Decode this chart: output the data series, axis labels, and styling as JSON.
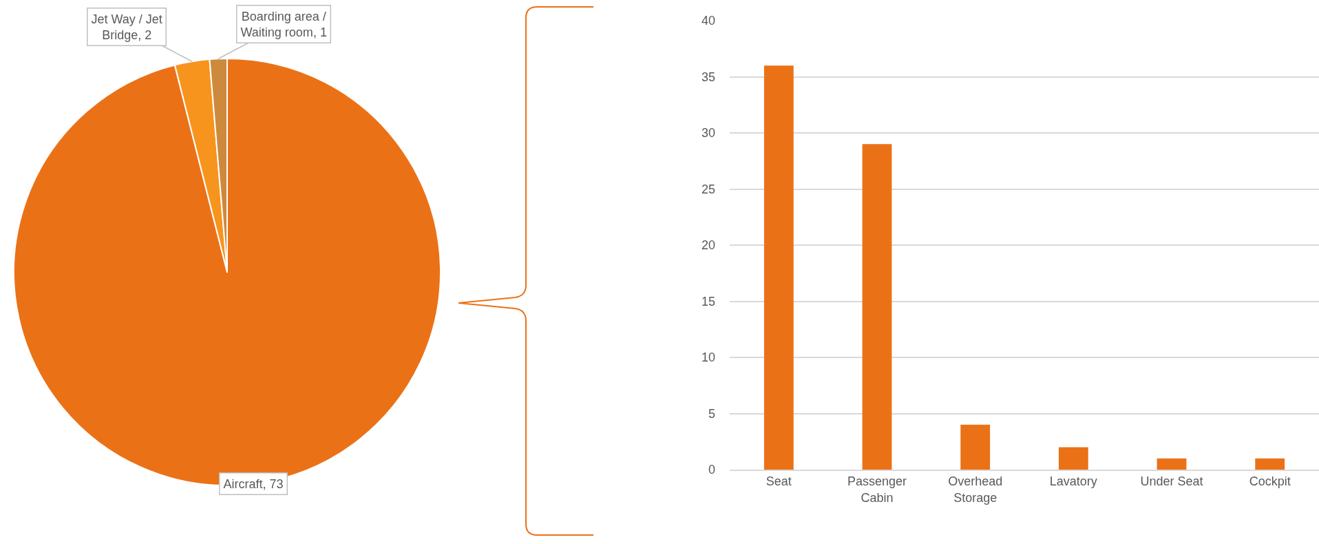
{
  "chart_data": [
    {
      "type": "pie",
      "categories": [
        "Aircraft",
        "Jet Way / Jet Bridge",
        "Boarding area / Waiting room"
      ],
      "values": [
        73,
        2,
        1
      ],
      "value_labels": [
        ", 73",
        ", 2",
        ", 1"
      ],
      "colors": [
        "#eb7117",
        "#f7941d",
        "#cd8a3d"
      ],
      "legend": false
    },
    {
      "type": "bar",
      "categories": [
        "Seat",
        "Passenger Cabin",
        "Overhead Storage",
        "Lavatory",
        "Under Seat",
        "Cockpit"
      ],
      "values": [
        36,
        29,
        4,
        2,
        1,
        1
      ],
      "color": "#eb7117",
      "ylim": [
        0,
        40
      ],
      "yticks": [
        0,
        5,
        10,
        15,
        20,
        25,
        30,
        35,
        40
      ],
      "grid": "y",
      "legend": false
    }
  ]
}
